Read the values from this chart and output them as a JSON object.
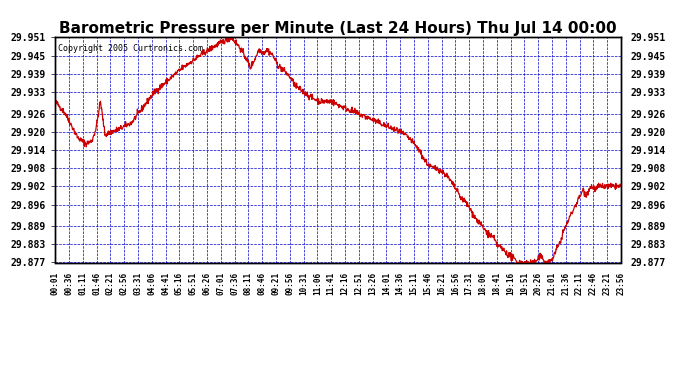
{
  "title": "Barometric Pressure per Minute (Last 24 Hours) Thu Jul 14 00:00",
  "copyright": "Copyright 2005 Curtronics.com",
  "background_color": "#ffffff",
  "plot_bg_color": "#ffffff",
  "line_color": "#cc0000",
  "grid_color": "#0000cc",
  "title_fontsize": 11,
  "ylabel_values": [
    29.877,
    29.883,
    29.889,
    29.896,
    29.902,
    29.908,
    29.914,
    29.92,
    29.926,
    29.933,
    29.939,
    29.945,
    29.951
  ],
  "xlabels": [
    "00:01",
    "00:36",
    "01:11",
    "01:46",
    "02:21",
    "02:56",
    "03:31",
    "04:06",
    "04:41",
    "05:16",
    "05:51",
    "06:26",
    "07:01",
    "07:36",
    "08:11",
    "08:46",
    "09:21",
    "09:56",
    "10:31",
    "11:06",
    "11:41",
    "12:16",
    "12:51",
    "13:26",
    "14:01",
    "14:36",
    "15:11",
    "15:46",
    "16:21",
    "16:56",
    "17:31",
    "18:06",
    "18:41",
    "19:16",
    "19:51",
    "20:26",
    "21:01",
    "21:36",
    "22:11",
    "22:46",
    "23:21",
    "23:56"
  ],
  "ylim": [
    29.877,
    29.951
  ],
  "num_points": 1440,
  "control_points": [
    [
      0.0,
      29.93
    ],
    [
      0.018,
      29.926
    ],
    [
      0.04,
      29.918
    ],
    [
      0.055,
      29.916
    ],
    [
      0.065,
      29.917
    ],
    [
      0.072,
      29.921
    ],
    [
      0.08,
      29.93
    ],
    [
      0.088,
      29.919
    ],
    [
      0.1,
      29.92
    ],
    [
      0.115,
      29.921
    ],
    [
      0.135,
      29.923
    ],
    [
      0.155,
      29.928
    ],
    [
      0.175,
      29.933
    ],
    [
      0.2,
      29.937
    ],
    [
      0.225,
      29.941
    ],
    [
      0.255,
      29.945
    ],
    [
      0.28,
      29.948
    ],
    [
      0.3,
      29.95
    ],
    [
      0.312,
      29.951
    ],
    [
      0.325,
      29.948
    ],
    [
      0.338,
      29.944
    ],
    [
      0.345,
      29.941
    ],
    [
      0.353,
      29.944
    ],
    [
      0.36,
      29.947
    ],
    [
      0.368,
      29.946
    ],
    [
      0.375,
      29.947
    ],
    [
      0.385,
      29.945
    ],
    [
      0.393,
      29.942
    ],
    [
      0.405,
      29.94
    ],
    [
      0.415,
      29.938
    ],
    [
      0.425,
      29.935
    ],
    [
      0.44,
      29.933
    ],
    [
      0.455,
      29.931
    ],
    [
      0.468,
      29.93
    ],
    [
      0.478,
      29.93
    ],
    [
      0.488,
      29.93
    ],
    [
      0.498,
      29.929
    ],
    [
      0.51,
      29.928
    ],
    [
      0.522,
      29.927
    ],
    [
      0.535,
      29.926
    ],
    [
      0.548,
      29.925
    ],
    [
      0.56,
      29.924
    ],
    [
      0.572,
      29.923
    ],
    [
      0.584,
      29.922
    ],
    [
      0.596,
      29.921
    ],
    [
      0.608,
      29.92
    ],
    [
      0.618,
      29.919
    ],
    [
      0.63,
      29.917
    ],
    [
      0.643,
      29.914
    ],
    [
      0.652,
      29.911
    ],
    [
      0.66,
      29.909
    ],
    [
      0.668,
      29.908
    ],
    [
      0.675,
      29.908
    ],
    [
      0.683,
      29.907
    ],
    [
      0.69,
      29.906
    ],
    [
      0.698,
      29.904
    ],
    [
      0.705,
      29.902
    ],
    [
      0.712,
      29.9
    ],
    [
      0.718,
      29.898
    ],
    [
      0.725,
      29.897
    ],
    [
      0.732,
      29.895
    ],
    [
      0.738,
      29.893
    ],
    [
      0.745,
      29.891
    ],
    [
      0.75,
      29.89
    ],
    [
      0.758,
      29.888
    ],
    [
      0.763,
      29.887
    ],
    [
      0.768,
      29.886
    ],
    [
      0.775,
      29.885
    ],
    [
      0.78,
      29.883
    ],
    [
      0.787,
      29.882
    ],
    [
      0.793,
      29.881
    ],
    [
      0.798,
      29.88
    ],
    [
      0.805,
      29.879
    ],
    [
      0.812,
      29.878
    ],
    [
      0.818,
      29.877
    ],
    [
      0.825,
      29.877
    ],
    [
      0.833,
      29.877
    ],
    [
      0.84,
      29.877
    ],
    [
      0.848,
      29.877
    ],
    [
      0.853,
      29.878
    ],
    [
      0.858,
      29.879
    ],
    [
      0.863,
      29.878
    ],
    [
      0.868,
      29.877
    ],
    [
      0.872,
      29.877
    ],
    [
      0.878,
      29.878
    ],
    [
      0.883,
      29.88
    ],
    [
      0.888,
      29.882
    ],
    [
      0.893,
      29.884
    ],
    [
      0.898,
      29.887
    ],
    [
      0.905,
      29.89
    ],
    [
      0.912,
      29.893
    ],
    [
      0.92,
      29.896
    ],
    [
      0.928,
      29.899
    ],
    [
      0.933,
      29.901
    ],
    [
      0.938,
      29.899
    ],
    [
      0.943,
      29.901
    ],
    [
      0.948,
      29.902
    ],
    [
      0.955,
      29.901
    ],
    [
      0.96,
      29.902
    ],
    [
      0.967,
      29.902
    ],
    [
      0.975,
      29.902
    ],
    [
      0.983,
      29.902
    ],
    [
      0.99,
      29.902
    ],
    [
      1.0,
      29.902
    ]
  ]
}
